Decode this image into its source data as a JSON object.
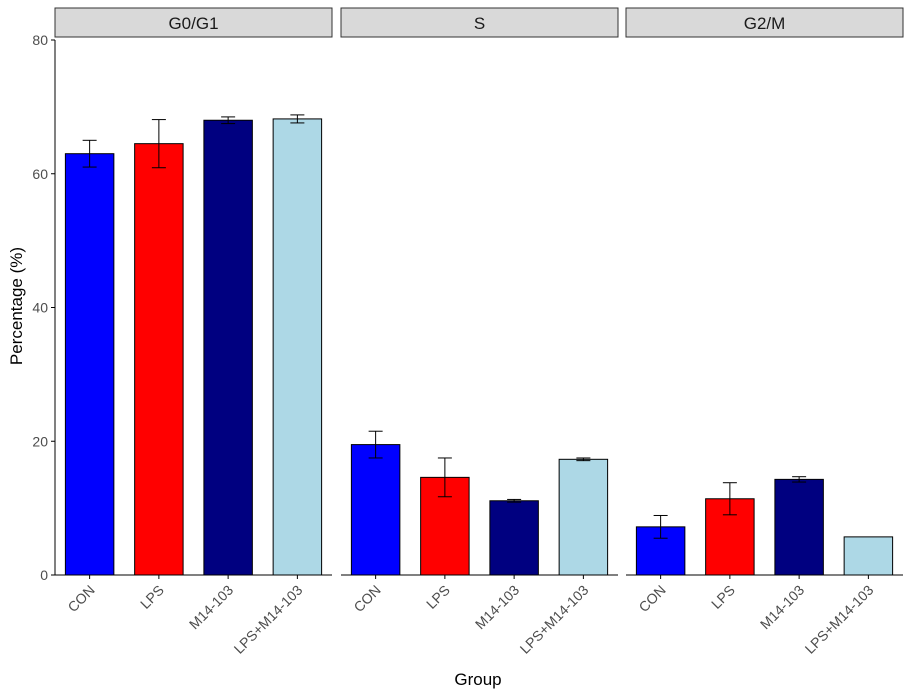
{
  "chart_data": {
    "type": "bar",
    "xlabel": "Group",
    "ylabel": "Percentage (%)",
    "ylim": [
      0,
      80
    ],
    "yticks": [
      "0",
      "20",
      "40",
      "60",
      "80"
    ],
    "grid": false,
    "categories": [
      "CON",
      "LPS",
      "M14-103",
      "LPS+M14-103"
    ],
    "colors": {
      "CON": "#0000ff",
      "LPS": "#ff0000",
      "M14-103": "#000080",
      "LPS+M14-103": "#add8e6"
    },
    "panels": [
      {
        "name": "G0/G1",
        "values": [
          63.0,
          64.5,
          68.0,
          68.2
        ],
        "errors": [
          2.0,
          3.6,
          0.5,
          0.6
        ]
      },
      {
        "name": "S",
        "values": [
          19.5,
          14.6,
          11.1,
          17.3
        ],
        "errors": [
          2.0,
          2.9,
          0.2,
          0.2
        ]
      },
      {
        "name": "G2/M",
        "values": [
          7.2,
          11.4,
          14.3,
          5.7
        ],
        "errors": [
          1.7,
          2.4,
          0.4,
          0.0
        ]
      }
    ]
  }
}
